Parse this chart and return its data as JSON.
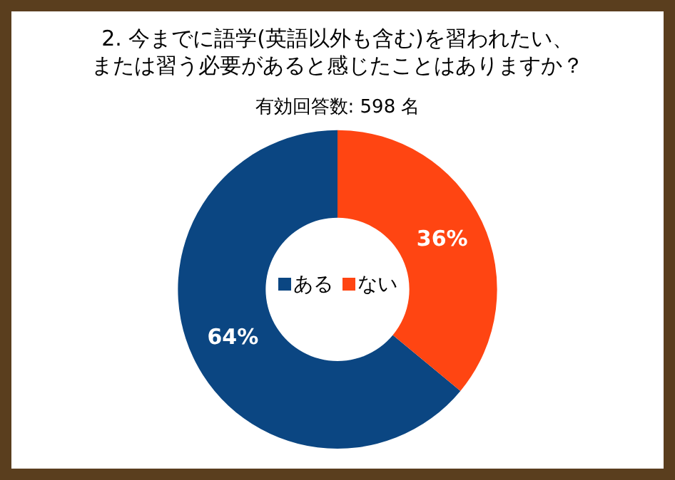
{
  "chart_data": {
    "type": "donut",
    "title": "2. 今までに語学(英語以外も含む)を習われたい、または習う必要があると感じたことはありますか？",
    "subtitle": "有効回答数: 598 名",
    "categories": [
      "ある",
      "ない"
    ],
    "values": [
      64,
      36
    ],
    "colors": [
      "#0b4682",
      "#ff4512"
    ],
    "value_labels": [
      "64%",
      "36%"
    ],
    "legend": "center"
  }
}
